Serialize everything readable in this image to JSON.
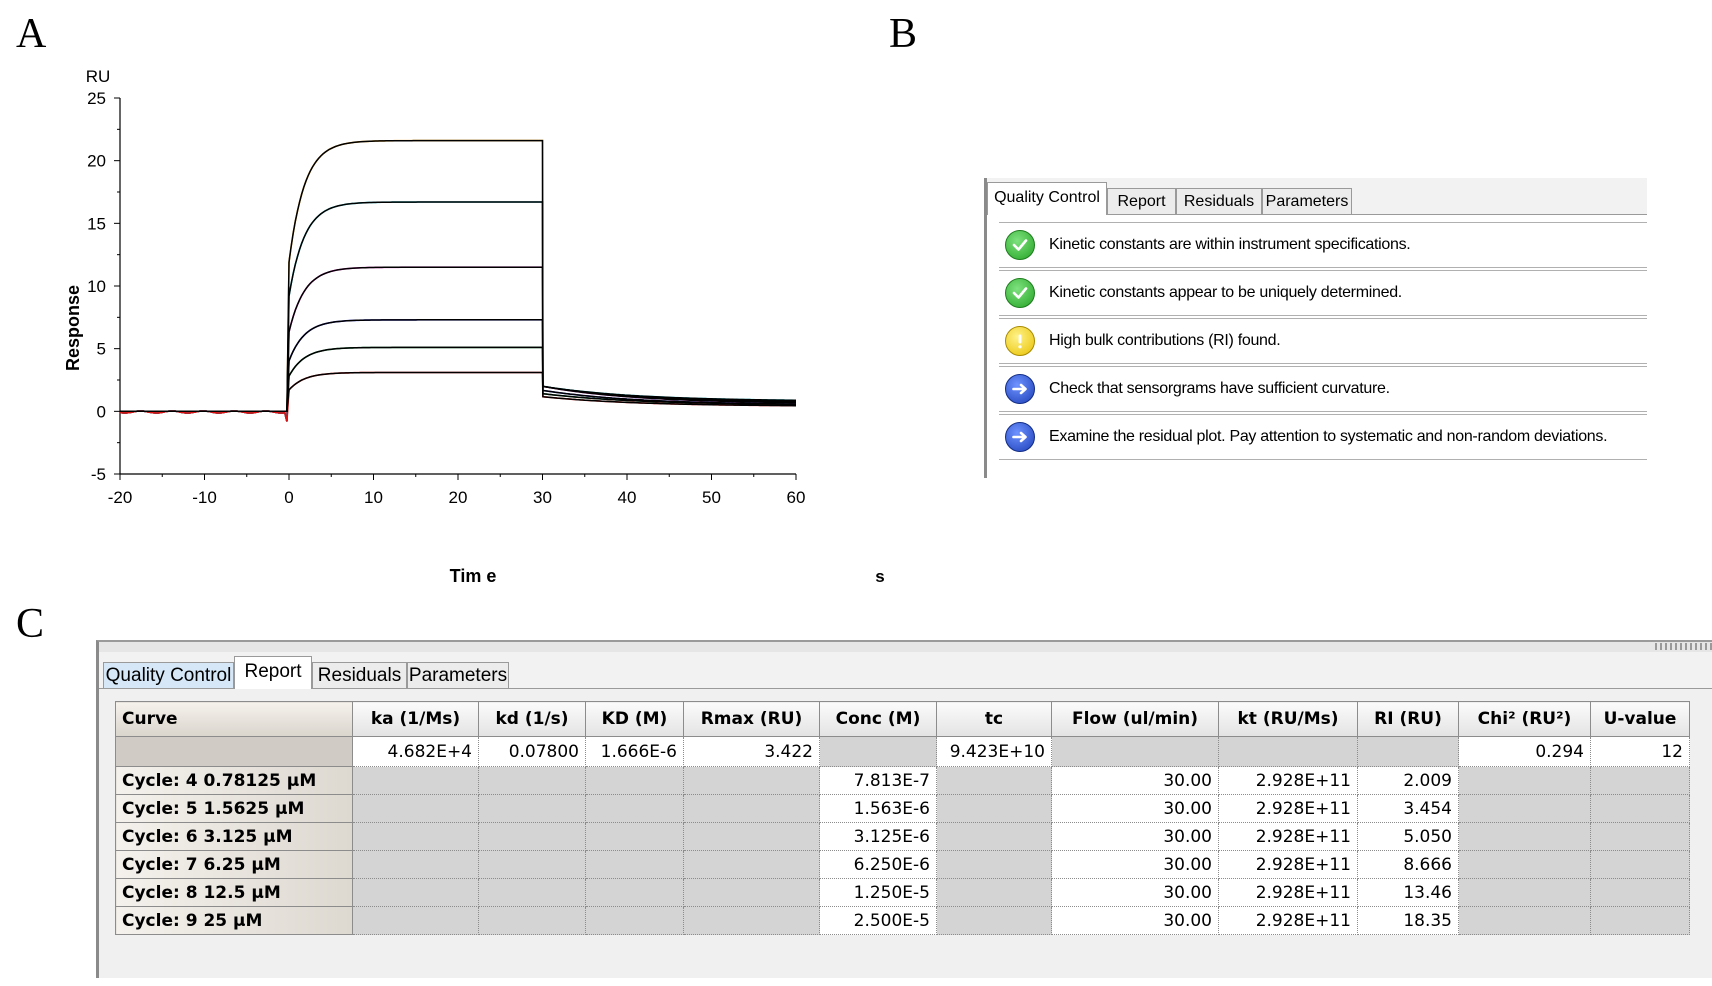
{
  "panels": {
    "a": "A",
    "b": "B",
    "c": "C"
  },
  "chart_data": {
    "type": "line",
    "title": "",
    "ylabel": "Response",
    "yunit": "RU",
    "xlabel": "Tim e",
    "xunit": "s",
    "xlim": [
      -20,
      60
    ],
    "ylim": [
      -5,
      25
    ],
    "xticks": [
      "-20",
      "-10",
      "0",
      "10",
      "20",
      "30",
      "40",
      "50",
      "60"
    ],
    "yticks": [
      "-5",
      "0",
      "5",
      "10",
      "15",
      "20",
      "25"
    ],
    "grid": false,
    "injection": {
      "start": 0,
      "end": 30
    },
    "series": [
      {
        "color": "#e69500",
        "plateau": 21.6,
        "final": 0.7
      },
      {
        "color": "#00b6c4",
        "plateau": 16.7,
        "final": 0.8
      },
      {
        "color": "#e020c0",
        "plateau": 11.5,
        "final": 0.6
      },
      {
        "color": "#2020d0",
        "plateau": 7.3,
        "final": 0.5
      },
      {
        "color": "#007a2a",
        "plateau": 5.1,
        "final": 0.5
      },
      {
        "color": "#e01010",
        "plateau": 3.1,
        "final": 0.4
      }
    ],
    "fit_color": "#000000"
  },
  "qc": {
    "tabs": [
      "Quality Control",
      "Report",
      "Residuals",
      "Parameters"
    ],
    "items": [
      {
        "status": "ok",
        "icon": "check-icon",
        "text": "Kinetic constants are within instrument specifications."
      },
      {
        "status": "ok",
        "icon": "check-icon",
        "text": "Kinetic constants appear to be uniquely determined."
      },
      {
        "status": "warn",
        "icon": "exclamation-icon",
        "text": "High bulk contributions (RI) found."
      },
      {
        "status": "info",
        "icon": "arrow-right-icon",
        "text": "Check that sensorgrams have sufficient curvature."
      },
      {
        "status": "info",
        "icon": "arrow-right-icon",
        "text": "Examine the residual plot. Pay attention to systematic and non-random deviations."
      }
    ]
  },
  "report": {
    "tabs": [
      "Quality Control",
      "Report",
      "Residuals",
      "Parameters"
    ],
    "columns": [
      "Curve",
      "ka (1/Ms)",
      "kd (1/s)",
      "KD (M)",
      "Rmax (RU)",
      "Conc (M)",
      "tc",
      "Flow (ul/min)",
      "kt (RU/Ms)",
      "RI (RU)",
      "Chi² (RU²)",
      "U-value"
    ],
    "global_row": [
      "",
      "4.682E+4",
      "0.07800",
      "1.666E-6",
      "3.422",
      "",
      "9.423E+10",
      "",
      "",
      "",
      "0.294",
      "12"
    ],
    "rows": [
      [
        "Cycle: 4  0.78125 μM",
        "",
        "",
        "",
        "",
        "7.813E-7",
        "",
        "30.00",
        "2.928E+11",
        "2.009",
        "",
        ""
      ],
      [
        "Cycle: 5  1.5625 μM",
        "",
        "",
        "",
        "",
        "1.563E-6",
        "",
        "30.00",
        "2.928E+11",
        "3.454",
        "",
        ""
      ],
      [
        "Cycle: 6  3.125 μM",
        "",
        "",
        "",
        "",
        "3.125E-6",
        "",
        "30.00",
        "2.928E+11",
        "5.050",
        "",
        ""
      ],
      [
        "Cycle: 7  6.25 μM",
        "",
        "",
        "",
        "",
        "6.250E-6",
        "",
        "30.00",
        "2.928E+11",
        "8.666",
        "",
        ""
      ],
      [
        "Cycle: 8  12.5 μM",
        "",
        "",
        "",
        "",
        "1.250E-5",
        "",
        "30.00",
        "2.928E+11",
        "13.46",
        "",
        ""
      ],
      [
        "Cycle: 9  25 μM",
        "",
        "",
        "",
        "",
        "2.500E-5",
        "",
        "30.00",
        "2.928E+11",
        "18.35",
        "",
        ""
      ]
    ]
  }
}
